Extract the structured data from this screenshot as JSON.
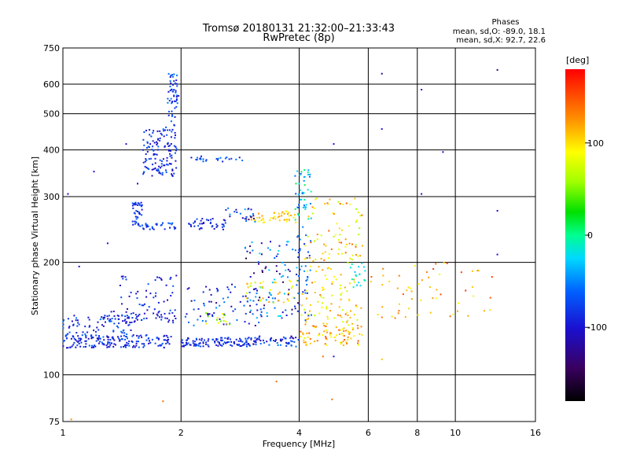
{
  "header": {
    "title_line1": "Tromsø 20180131 21:32:00–21:33:43",
    "title_line2": "RwPretec (8p)"
  },
  "phases": {
    "title": "Phases",
    "line_o": "mean, sd,O: -89.0, 18.1",
    "line_x": "mean, sd,X: 92.7, 22.6"
  },
  "colorbar": {
    "unit": "deg",
    "ticks": [
      {
        "value": 100,
        "label": "100"
      },
      {
        "value": 0,
        "label": "0"
      },
      {
        "value": -100,
        "label": "-100"
      }
    ],
    "range": [
      -180,
      180
    ]
  },
  "chart_data": {
    "type": "scatter",
    "title": "Tromsø 20180131 21:32:00–21:33:43",
    "subtitle": "RwPretec (8p)",
    "xlabel": "Frequency [MHz]",
    "ylabel": "Stationary phase Virtual Height [km]",
    "xscale": "log",
    "yscale": "log",
    "xlim": [
      1,
      16
    ],
    "ylim": [
      75,
      750
    ],
    "grid": true,
    "x_ticks": [
      1,
      2,
      4,
      6,
      8,
      10,
      16
    ],
    "x_tick_labels": [
      "1",
      "2",
      "4",
      "6",
      "8",
      "10",
      "16"
    ],
    "y_ticks": [
      75,
      100,
      200,
      300,
      400,
      500,
      600,
      750
    ],
    "y_tick_labels": [
      "75",
      "100",
      "200",
      "300",
      "400",
      "500",
      "600",
      "750"
    ],
    "color_by": "phase",
    "color_range": [
      -180,
      180
    ],
    "color_ticks": [
      -100,
      0,
      100
    ],
    "color_label": "deg",
    "series": [
      {
        "type": "clusters",
        "clusters": [
          {
            "xr": [
              1.0,
              1.9
            ],
            "yr": [
              118,
              128
            ],
            "n": 170,
            "pr": [
              -120,
              -80
            ]
          },
          {
            "xr": [
              1.0,
              1.5
            ],
            "yr": [
              125,
              145
            ],
            "n": 80,
            "pr": [
              -120,
              -70
            ]
          },
          {
            "xr": [
              1.25,
              1.95
            ],
            "yr": [
              138,
              148
            ],
            "n": 60,
            "pr": [
              -130,
              -80
            ]
          },
          {
            "xr": [
              1.4,
              1.95
            ],
            "yr": [
              148,
              185
            ],
            "n": 45,
            "pr": [
              -130,
              -80
            ]
          },
          {
            "xr": [
              1.5,
              1.95
            ],
            "yr": [
              245,
              255
            ],
            "n": 35,
            "pr": [
              -110,
              -80
            ]
          },
          {
            "xr": [
              1.5,
              1.6
            ],
            "yr": [
              255,
              290
            ],
            "n": 35,
            "pr": [
              -110,
              -80
            ]
          },
          {
            "xr": [
              1.6,
              1.95
            ],
            "yr": [
              340,
              460
            ],
            "n": 130,
            "pr": [
              -120,
              -80
            ]
          },
          {
            "xr": [
              1.85,
              1.98
            ],
            "yr": [
              460,
              640
            ],
            "n": 55,
            "pr": [
              -120,
              -70
            ]
          },
          {
            "xr": [
              2.0,
              3.0
            ],
            "yr": [
              119,
              126
            ],
            "n": 110,
            "pr": [
              -120,
              -80
            ]
          },
          {
            "xr": [
              2.05,
              3.2
            ],
            "yr": [
              135,
              175
            ],
            "n": 75,
            "pr": [
              -140,
              -60
            ]
          },
          {
            "xr": [
              2.05,
              2.6
            ],
            "yr": [
              245,
              262
            ],
            "n": 40,
            "pr": [
              -120,
              -80
            ]
          },
          {
            "xr": [
              2.05,
              2.9
            ],
            "yr": [
              372,
              385
            ],
            "n": 24,
            "pr": [
              -110,
              -70
            ]
          },
          {
            "xr": [
              2.3,
              2.7
            ],
            "yr": [
              135,
              148
            ],
            "n": 15,
            "pr": [
              40,
              110
            ]
          },
          {
            "xr": [
              3.0,
              4.0
            ],
            "yr": [
              119,
              127
            ],
            "n": 60,
            "pr": [
              -130,
              -70
            ]
          },
          {
            "xr": [
              2.9,
              4.0
            ],
            "yr": [
              140,
              230
            ],
            "n": 95,
            "pr": [
              -160,
              -20
            ]
          },
          {
            "xr": [
              2.9,
              4.0
            ],
            "yr": [
              155,
              180
            ],
            "n": 35,
            "pr": [
              60,
              140
            ]
          },
          {
            "xr": [
              3.0,
              4.0
            ],
            "yr": [
              255,
              275
            ],
            "n": 45,
            "pr": [
              90,
              140
            ]
          },
          {
            "xr": [
              2.6,
              3.1
            ],
            "yr": [
              255,
              280
            ],
            "n": 25,
            "pr": [
              -150,
              -50
            ]
          },
          {
            "xr": [
              3.9,
              4.3
            ],
            "yr": [
              260,
              360
            ],
            "n": 45,
            "pr": [
              -90,
              20
            ]
          },
          {
            "xr": [
              3.9,
              4.3
            ],
            "yr": [
              140,
              250
            ],
            "n": 35,
            "pr": [
              -110,
              -60
            ]
          },
          {
            "xr": [
              4.0,
              5.8
            ],
            "yr": [
              120,
              135
            ],
            "n": 75,
            "pr": [
              90,
              160
            ]
          },
          {
            "xr": [
              4.0,
              5.8
            ],
            "yr": [
              135,
              230
            ],
            "n": 120,
            "pr": [
              70,
              150
            ]
          },
          {
            "xr": [
              4.2,
              5.8
            ],
            "yr": [
              220,
              300
            ],
            "n": 45,
            "pr": [
              60,
              160
            ]
          },
          {
            "xr": [
              5.4,
              5.9
            ],
            "yr": [
              170,
              200
            ],
            "n": 18,
            "pr": [
              -40,
              0
            ]
          },
          {
            "xr": [
              6.0,
              7.5
            ],
            "yr": [
              140,
              200
            ],
            "n": 18,
            "pr": [
              110,
              160
            ]
          },
          {
            "xr": [
              7.5,
              9.0
            ],
            "yr": [
              140,
              200
            ],
            "n": 20,
            "pr": [
              90,
              170
            ]
          },
          {
            "xr": [
              9.0,
              12.5
            ],
            "yr": [
              140,
              200
            ],
            "n": 20,
            "pr": [
              90,
              170
            ]
          }
        ],
        "points": [
          {
            "x": 1.03,
            "y": 305,
            "p": -110
          },
          {
            "x": 1.1,
            "y": 195,
            "p": -110
          },
          {
            "x": 1.2,
            "y": 350,
            "p": -110
          },
          {
            "x": 1.3,
            "y": 225,
            "p": -110
          },
          {
            "x": 1.45,
            "y": 415,
            "p": -110
          },
          {
            "x": 1.55,
            "y": 325,
            "p": -110
          },
          {
            "x": 4.9,
            "y": 415,
            "p": -110
          },
          {
            "x": 4.9,
            "y": 112,
            "p": -110
          },
          {
            "x": 6.5,
            "y": 640,
            "p": -130
          },
          {
            "x": 6.5,
            "y": 455,
            "p": -110
          },
          {
            "x": 8.2,
            "y": 580,
            "p": -110
          },
          {
            "x": 8.2,
            "y": 305,
            "p": -110
          },
          {
            "x": 9.3,
            "y": 395,
            "p": -110
          },
          {
            "x": 12.8,
            "y": 655,
            "p": -140
          },
          {
            "x": 12.8,
            "y": 275,
            "p": -110
          },
          {
            "x": 12.8,
            "y": 210,
            "p": -110
          },
          {
            "x": 3.5,
            "y": 96,
            "p": 150
          },
          {
            "x": 4.85,
            "y": 86,
            "p": 150
          },
          {
            "x": 1.8,
            "y": 85,
            "p": 150
          },
          {
            "x": 1.05,
            "y": 76,
            "p": 140
          },
          {
            "x": 6.5,
            "y": 110,
            "p": 120
          },
          {
            "x": 4.6,
            "y": 112,
            "p": 150
          }
        ]
      }
    ]
  }
}
